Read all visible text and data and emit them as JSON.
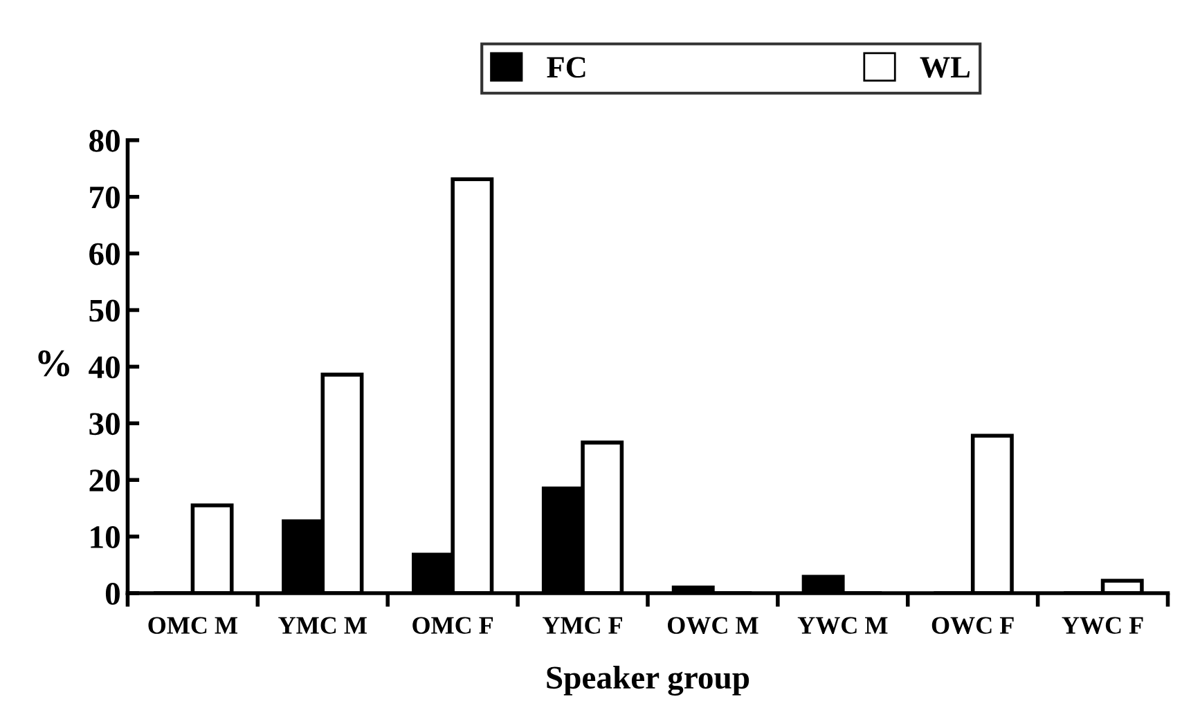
{
  "chart_data": {
    "type": "bar",
    "xlabel": "Speaker group",
    "ylabel": "%",
    "categories": [
      "OMC M",
      "YMC M",
      "OMC F",
      "YMC F",
      "OWC M",
      "YWC M",
      "OWC F",
      "YWC F"
    ],
    "series": [
      {
        "name": "FC",
        "color": "#000000",
        "values": [
          0,
          12.7,
          6.8,
          18.5,
          1.0,
          2.9,
          0,
          0
        ]
      },
      {
        "name": "WL",
        "color": "#ffffff",
        "values": [
          15.5,
          38.6,
          73.1,
          26.6,
          0,
          0,
          27.8,
          2.2
        ]
      }
    ],
    "ylim": [
      0,
      80
    ],
    "yticks": [
      0,
      10,
      20,
      30,
      40,
      50,
      60,
      70,
      80
    ],
    "grid": false,
    "legend": "top"
  }
}
